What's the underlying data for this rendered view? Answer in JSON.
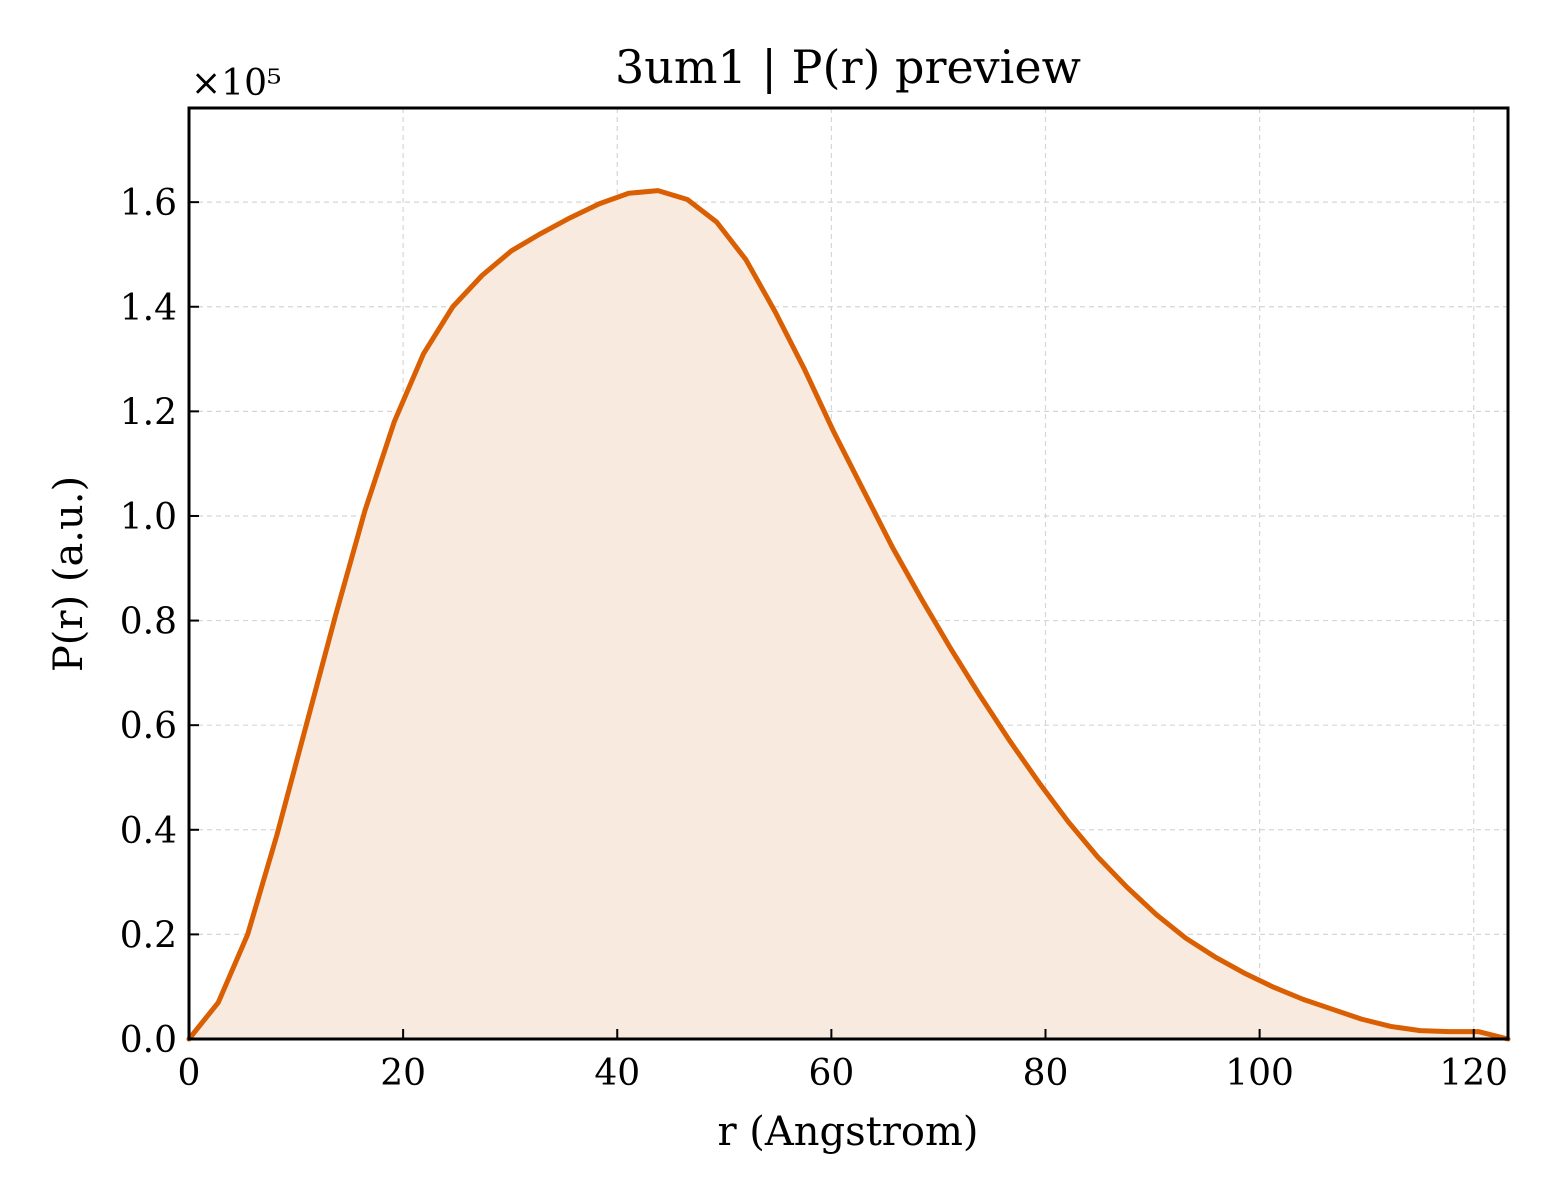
{
  "chart_data": {
    "type": "area",
    "title": "3um1 | P(r) preview",
    "xlabel": "r (Angstrom)",
    "ylabel": "P(r) (a.u.)",
    "y_offset_label": "×10⁵",
    "y_multiplier": 100000,
    "xlim": [
      0,
      123.2
    ],
    "ylim": [
      0,
      1.78
    ],
    "xticks": [
      0,
      20,
      40,
      60,
      80,
      100,
      120
    ],
    "xtick_labels": [
      "0",
      "20",
      "40",
      "60",
      "80",
      "100",
      "120"
    ],
    "yticks": [
      0.0,
      0.2,
      0.4,
      0.6,
      0.8,
      1.0,
      1.2,
      1.4,
      1.6
    ],
    "ytick_labels": [
      "0.0",
      "0.2",
      "0.4",
      "0.6",
      "0.8",
      "1.0",
      "1.2",
      "1.4",
      "1.6"
    ],
    "grid": true,
    "line_color": "#d95f02",
    "fill_color": "#f8eadf",
    "series": [
      {
        "x": [
          0,
          2.74,
          5.48,
          8.21,
          10.95,
          13.69,
          16.43,
          19.17,
          21.9,
          24.64,
          27.38,
          30.12,
          32.86,
          35.59,
          38.33,
          41.07,
          43.81,
          46.55,
          49.28,
          52.02,
          54.76,
          57.5,
          60.24,
          62.97,
          65.71,
          68.45,
          71.19,
          73.93,
          76.66,
          79.4,
          82.14,
          84.88,
          87.62,
          90.35,
          93.09,
          95.83,
          98.57,
          101.31,
          104.04,
          106.78,
          109.52,
          112.26,
          115.0,
          117.73,
          120.47,
          123.2
        ],
        "y": [
          0.0,
          0.07,
          0.2,
          0.39,
          0.6,
          0.81,
          1.01,
          1.18,
          1.31,
          1.4,
          1.46,
          1.507,
          1.54,
          1.57,
          1.597,
          1.617,
          1.622,
          1.605,
          1.562,
          1.49,
          1.39,
          1.28,
          1.16,
          1.05,
          0.94,
          0.84,
          0.745,
          0.655,
          0.57,
          0.49,
          0.415,
          0.348,
          0.29,
          0.238,
          0.193,
          0.157,
          0.126,
          0.099,
          0.076,
          0.057,
          0.038,
          0.024,
          0.016,
          0.014,
          0.014,
          0.0
        ]
      }
    ]
  }
}
